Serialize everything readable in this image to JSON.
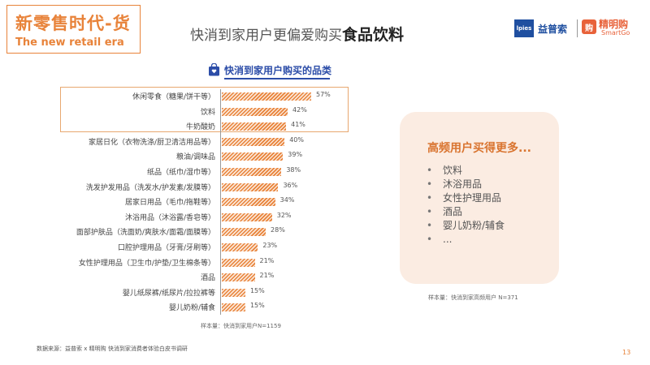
{
  "header": {
    "title": "新零售时代-货",
    "subtitle": "The new retail era"
  },
  "main_title": {
    "prefix": "快消到家用户更偏爱购买",
    "highlight": "食品饮料"
  },
  "logos": {
    "lpies_mark": "lpies",
    "ypx_text": "益普索",
    "jmg_mark": "购",
    "jmg_text": "精明购",
    "jmg_sub": "SmartGo"
  },
  "chart_title": "快消到家用户购买的品类",
  "chart_data": {
    "type": "bar",
    "orientation": "horizontal",
    "title": "快消到家用户购买的品类",
    "value_unit": "%",
    "xlim": [
      0,
      60
    ],
    "categories": [
      "休闲零食（糖果/饼干等）",
      "饮料",
      "牛奶酸奶",
      "家居日化（衣物洗涤/厨卫清洁用品等）",
      "粮油/调味品",
      "纸品（纸巾/湿巾等）",
      "洗发护发用品（洗发水/护发素/发膜等）",
      "居家日用品（毛巾/拖鞋等）",
      "沐浴用品（沐浴露/香皂等）",
      "面部护肤品（洗面奶/爽肤水/面霜/面膜等）",
      "口腔护理用品（牙膏/牙刷等）",
      "女性护理用品（卫生巾/护垫/卫生棉条等）",
      "酒品",
      "婴儿纸尿裤/纸尿片/拉拉裤等",
      "婴儿奶粉/辅食"
    ],
    "values": [
      57,
      42,
      41,
      40,
      39,
      38,
      36,
      34,
      32,
      28,
      23,
      21,
      21,
      15,
      15
    ],
    "value_labels": [
      "57%",
      "42%",
      "41%",
      "40%",
      "39%",
      "38%",
      "36%",
      "34%",
      "32%",
      "28%",
      "23%",
      "21%",
      "21%",
      "15%",
      "15%"
    ],
    "highlighted_categories": [
      "休闲零食（糖果/饼干等）",
      "饮料",
      "牛奶酸奶"
    ]
  },
  "sample_left": "样本量：快消到家用户N=1159",
  "panel": {
    "title": "高频用户买得更多...",
    "items": [
      "饮料",
      "沐浴用品",
      "女性护理用品",
      "酒品",
      "婴儿奶粉/辅食",
      "..."
    ],
    "sample": "样本量：快消到家高频用户 N=371"
  },
  "source": "数据来源：益普索 x 精明购 快消到家消费者体验白皮书调研",
  "page_number": "13",
  "colors": {
    "accent": "#e8833a",
    "title_blue": "#2c4da8",
    "panel_bg": "#fbece2"
  }
}
